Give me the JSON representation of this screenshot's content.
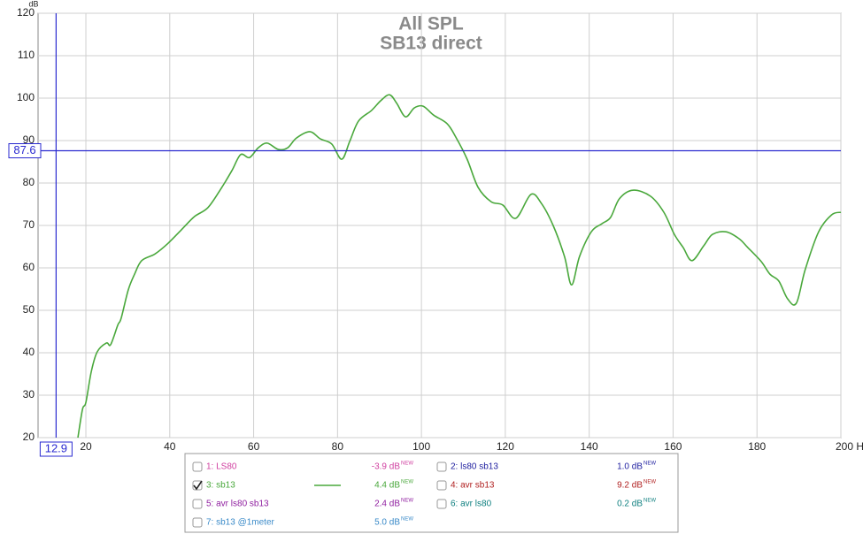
{
  "chart_data": {
    "type": "line",
    "title": "All SPL",
    "subtitle": "SB13 direct",
    "y_unit": "dB",
    "xlim": [
      8.6,
      200
    ],
    "ylim": [
      20,
      120
    ],
    "xticks": [
      20,
      40,
      60,
      80,
      100,
      120,
      140,
      160,
      180,
      {
        "value": 200,
        "label": "200 Hz"
      }
    ],
    "yticks": [
      20,
      30,
      40,
      50,
      60,
      70,
      80,
      90,
      100,
      110,
      120
    ],
    "grid": true,
    "cursor": {
      "x": 12.9,
      "y": 87.6,
      "color": "#2a2ad0"
    },
    "badge": "NEW",
    "series": [
      {
        "name": "1: LS80",
        "color": "#d040a0",
        "offset": "-3.9 dB",
        "checked": false
      },
      {
        "name": "2: ls80 sb13",
        "color": "#2020a0",
        "offset": "1.0 dB",
        "checked": false
      },
      {
        "name": "3: sb13",
        "color": "#4aa83c",
        "offset": "4.4 dB",
        "checked": true,
        "x": [
          18.1,
          19.2,
          20,
          21.3,
          22.7,
          24.9,
          25.9,
          27.6,
          28.4,
          30.1,
          31.6,
          33.3,
          36.5,
          39.6,
          42.8,
          45.9,
          49.1,
          52.3,
          54.8,
          56.9,
          59.0,
          61.1,
          63.2,
          65.9,
          68.1,
          70.2,
          73.4,
          75.9,
          78.6,
          81.0,
          82.9,
          85,
          88.1,
          90.3,
          92.4,
          94.1,
          96.2,
          98.3,
          100.4,
          102.9,
          106.1,
          108.2,
          110.9,
          113.5,
          116.6,
          119.4,
          122.5,
          126.1,
          128.6,
          131.4,
          134.1,
          135.8,
          137.7,
          140.5,
          143,
          145.1,
          147.2,
          150.4,
          154.6,
          157.8,
          160.3,
          162.4,
          164.5,
          167.3,
          169.4,
          172.6,
          175.7,
          177.8,
          181,
          183.1,
          185.2,
          187.3,
          189.4,
          191.5,
          194.7,
          197.8,
          200
        ],
        "values": [
          20,
          26.7,
          28.3,
          35.6,
          40.2,
          42.3,
          41.9,
          46.5,
          48.1,
          54.8,
          58.5,
          61.7,
          63.3,
          65.8,
          69,
          72.1,
          74.2,
          78.8,
          82.9,
          86.7,
          86,
          88.3,
          89.4,
          87.9,
          88.3,
          90.6,
          92.1,
          90.4,
          89.2,
          85.6,
          89.8,
          94.6,
          97.1,
          99.4,
          100.8,
          98.8,
          95.6,
          97.7,
          98.1,
          96,
          94,
          90.8,
          85.6,
          79,
          75.6,
          74.8,
          71.7,
          77.3,
          75.2,
          70,
          62.7,
          56,
          62.7,
          68.5,
          70.4,
          71.9,
          76.3,
          78.3,
          76.9,
          73.1,
          67.9,
          64.8,
          61.7,
          65.2,
          67.9,
          68.5,
          66.9,
          64.8,
          61.5,
          58.5,
          56.9,
          52.7,
          51.7,
          59.6,
          68.5,
          72.5,
          73.1
        ]
      },
      {
        "name": "4: avr sb13",
        "color": "#b02020",
        "offset": "9.2 dB",
        "checked": false
      },
      {
        "name": "5: avr ls80 sb13",
        "color": "#9020a0",
        "offset": "2.4 dB",
        "checked": false
      },
      {
        "name": "6: avr ls80",
        "color": "#108080",
        "offset": "0.2 dB",
        "checked": false
      },
      {
        "name": "7: sb13 @1meter",
        "color": "#3a8ac8",
        "offset": "5.0 dB",
        "checked": false
      }
    ]
  }
}
